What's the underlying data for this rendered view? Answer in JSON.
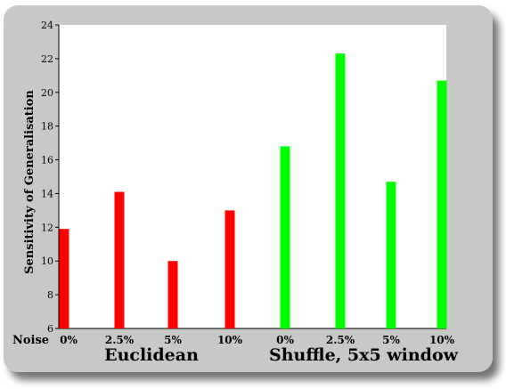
{
  "chart_data": {
    "type": "bar",
    "ylabel": "Sensitivity of Generalisation",
    "xlabel_prefix": "Noise",
    "ylim": [
      6,
      24
    ],
    "yticks": [
      6,
      8,
      10,
      12,
      14,
      16,
      18,
      20,
      22,
      24
    ],
    "categories": [
      "0%",
      "2.5%",
      "5%",
      "10%",
      "0%",
      "2.5%",
      "5%",
      "10%"
    ],
    "groups": [
      {
        "name": "Euclidean",
        "color": "#ff0000",
        "values": [
          11.9,
          14.1,
          10.0,
          13.0
        ]
      },
      {
        "name": "Shuffle, 5x5 window",
        "color": "#00ff00",
        "values": [
          16.8,
          22.3,
          14.7,
          20.7
        ]
      }
    ],
    "grid": false
  }
}
